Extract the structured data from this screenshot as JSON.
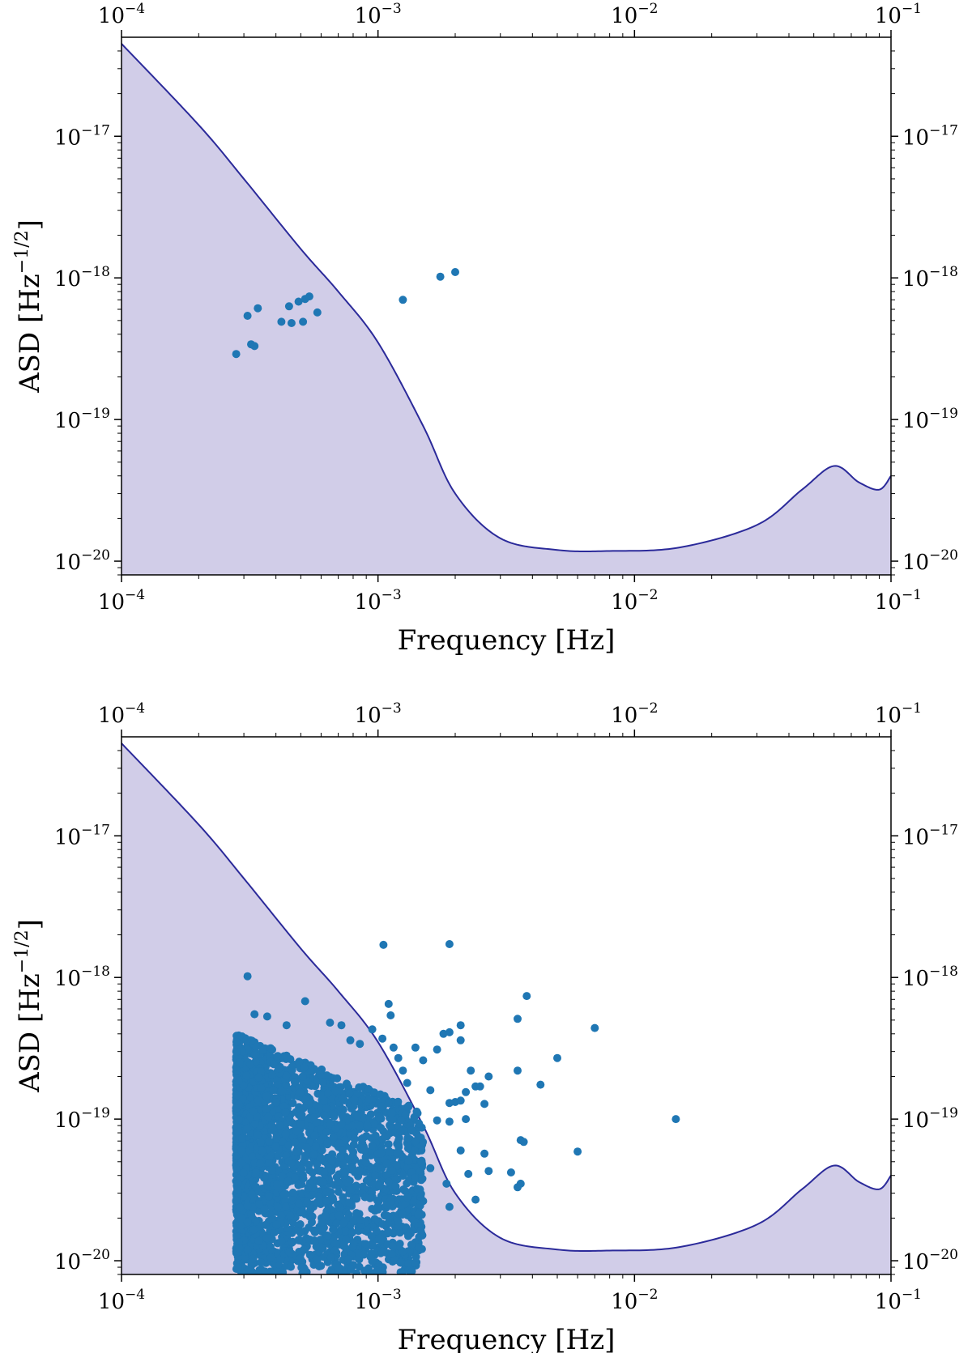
{
  "chart_data": [
    {
      "type": "scatter",
      "xscale": "log",
      "yscale": "log",
      "xlim": [
        0.0001,
        0.1
      ],
      "ylim": [
        8e-21,
        5e-17
      ],
      "xlabel": "Frequency [Hz]",
      "ylabel": "ASD [Hz^-1/2]",
      "x_ticks": [
        "10^-4",
        "10^-3",
        "10^-2",
        "10^-1"
      ],
      "y_ticks": [
        "10^-20",
        "10^-19",
        "10^-18",
        "10^-17"
      ],
      "secondary_x_axis": "top (same ticks)",
      "secondary_y_axis": "right (same ticks)",
      "grid": false,
      "colors": {
        "curve": "#2b2a9a",
        "fill": "#d1cde8",
        "points": "#1f77b4"
      },
      "sensitivity_curve": {
        "x": [
          0.0001,
          0.0002,
          0.0003,
          0.0005,
          0.0007,
          0.001,
          0.0015,
          0.002,
          0.003,
          0.005,
          0.008,
          0.015,
          0.03,
          0.045,
          0.06,
          0.075,
          0.09,
          0.1
        ],
        "y": [
          4.5e-17,
          1.2e-17,
          5e-18,
          1.6e-18,
          8e-19,
          3.5e-19,
          9e-20,
          3e-20,
          1.45e-20,
          1.2e-20,
          1.18e-20,
          1.25e-20,
          1.8e-20,
          3.2e-20,
          4.7e-20,
          3.6e-20,
          3.2e-20,
          4e-20
        ]
      },
      "series": [
        {
          "points": [
            [
              0.00028,
              2.9e-19
            ],
            [
              0.00031,
              5.4e-19
            ],
            [
              0.00032,
              3.4e-19
            ],
            [
              0.00033,
              3.3e-19
            ],
            [
              0.00034,
              6.1e-19
            ],
            [
              0.00042,
              4.9e-19
            ],
            [
              0.00045,
              6.3e-19
            ],
            [
              0.00046,
              4.8e-19
            ],
            [
              0.00049,
              6.8e-19
            ],
            [
              0.00051,
              4.9e-19
            ],
            [
              0.00052,
              7.1e-19
            ],
            [
              0.00054,
              7.4e-19
            ],
            [
              0.00058,
              5.7e-19
            ],
            [
              0.00125,
              7e-19
            ],
            [
              0.00175,
              1.02e-18
            ],
            [
              0.002,
              1.1e-18
            ]
          ]
        }
      ]
    },
    {
      "type": "scatter",
      "xscale": "log",
      "yscale": "log",
      "xlim": [
        0.0001,
        0.1
      ],
      "ylim": [
        8e-21,
        5e-17
      ],
      "xlabel": "Frequency [Hz]",
      "ylabel": "ASD [Hz^-1/2]",
      "x_ticks": [
        "10^-4",
        "10^-3",
        "10^-2",
        "10^-1"
      ],
      "y_ticks": [
        "10^-20",
        "10^-19",
        "10^-18",
        "10^-17"
      ],
      "secondary_x_axis": "top (same ticks)",
      "secondary_y_axis": "right (same ticks)",
      "grid": false,
      "colors": {
        "curve": "#2b2a9a",
        "fill": "#d1cde8",
        "points": "#1f77b4"
      },
      "sensitivity_curve": {
        "x": [
          0.0001,
          0.0002,
          0.0003,
          0.0005,
          0.0007,
          0.001,
          0.0015,
          0.002,
          0.003,
          0.005,
          0.008,
          0.015,
          0.03,
          0.045,
          0.06,
          0.075,
          0.09,
          0.1
        ],
        "y": [
          4.5e-17,
          1.2e-17,
          5e-18,
          1.6e-18,
          8e-19,
          3.5e-19,
          9e-20,
          3e-20,
          1.45e-20,
          1.2e-20,
          1.18e-20,
          1.25e-20,
          1.8e-20,
          3.2e-20,
          4.7e-20,
          3.6e-20,
          3.2e-20,
          4e-20
        ]
      },
      "series": [
        {
          "points": [
            [
              0.00031,
              1.02e-18
            ],
            [
              0.00033,
              5.5e-19
            ],
            [
              0.00037,
              5.3e-19
            ],
            [
              0.00044,
              4.6e-19
            ],
            [
              0.00052,
              6.8e-19
            ],
            [
              0.00065,
              4.8e-19
            ],
            [
              0.00072,
              4.6e-19
            ],
            [
              0.00078,
              3.6e-19
            ],
            [
              0.00085,
              3.4e-19
            ],
            [
              0.00095,
              4.3e-19
            ],
            [
              0.00105,
              1.7e-18
            ],
            [
              0.0011,
              6.5e-19
            ],
            [
              0.00112,
              5.4e-19
            ],
            [
              0.00104,
              3.7e-19
            ],
            [
              0.00115,
              3.2e-19
            ],
            [
              0.0012,
              2.7e-19
            ],
            [
              0.00125,
              2.2e-19
            ],
            [
              0.0013,
              1.8e-19
            ],
            [
              0.0014,
              3.2e-19
            ],
            [
              0.0015,
              2.6e-19
            ],
            [
              0.0016,
              1.6e-19
            ],
            [
              0.0017,
              3.1e-19
            ],
            [
              0.0018,
              4e-19
            ],
            [
              0.0019,
              4.1e-19
            ],
            [
              0.0019,
              1.72e-18
            ],
            [
              0.002,
              1.32e-19
            ],
            [
              0.0021,
              3.6e-19
            ],
            [
              0.0021,
              4.6e-19
            ],
            [
              0.0022,
              1.55e-19
            ],
            [
              0.0023,
              2.2e-19
            ],
            [
              0.0024,
              1.7e-19
            ],
            [
              0.0025,
              1.7e-19
            ],
            [
              0.0026,
              1.28e-19
            ],
            [
              0.0027,
              2e-19
            ],
            [
              0.0026,
              5.7e-20
            ],
            [
              0.0027,
              4.3e-20
            ],
            [
              0.0024,
              2.7e-20
            ],
            [
              0.0019,
              9.6e-20
            ],
            [
              0.0017,
              9.8e-20
            ],
            [
              0.0019,
              1.3e-19
            ],
            [
              0.0021,
              1.35e-19
            ],
            [
              0.0022,
              1e-19
            ],
            [
              0.0035,
              5.1e-19
            ],
            [
              0.0035,
              2.2e-19
            ],
            [
              0.0038,
              7.4e-19
            ],
            [
              0.0043,
              1.75e-19
            ],
            [
              0.0036,
              7.1e-20
            ],
            [
              0.0037,
              6.9e-20
            ],
            [
              0.0033,
              4.2e-20
            ],
            [
              0.0035,
              3.3e-20
            ],
            [
              0.0036,
              3.5e-20
            ],
            [
              0.005,
              2.7e-19
            ],
            [
              0.006,
              5.9e-20
            ],
            [
              0.007,
              4.4e-19
            ],
            [
              0.0145,
              1e-19
            ],
            [
              0.0021,
              6e-20
            ],
            [
              0.00225,
              4.1e-20
            ],
            [
              0.00185,
              3.5e-20
            ],
            [
              0.0019,
              2.4e-20
            ],
            [
              0.0016,
              4.5e-20
            ],
            [
              0.0014,
              7e-20
            ],
            [
              0.0013,
              2.8e-20
            ],
            [
              0.0012,
              1.9e-20
            ],
            [
              0.0011,
              3.6e-20
            ],
            [
              0.001,
              2.3e-20
            ]
          ],
          "dense_cloud": {
            "x_range": [
              0.00028,
              0.0015
            ],
            "y_range": [
              8e-21,
              4e-19
            ],
            "description": "dense cluster of many overlapping points"
          }
        }
      ]
    }
  ]
}
